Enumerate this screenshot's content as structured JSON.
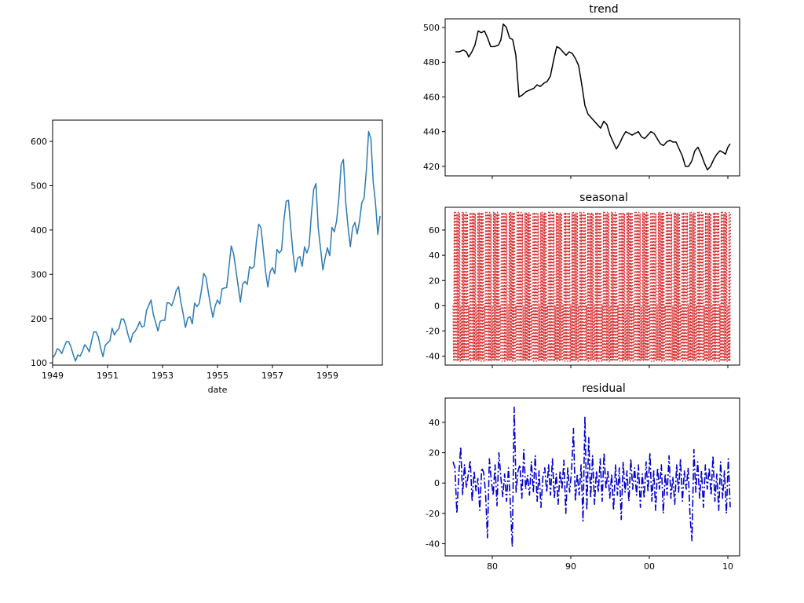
{
  "chart_data": [
    {
      "id": "passengers",
      "type": "line",
      "title": "",
      "xlabel": "date",
      "ylabel": "",
      "xlim": [
        1949,
        1961
      ],
      "ylim": [
        95,
        648
      ],
      "xticks": [
        1949,
        1951,
        1953,
        1955,
        1957,
        1959
      ],
      "yticks": [
        100,
        200,
        300,
        400,
        500,
        600
      ],
      "color": "#2b7bb4",
      "grid": false,
      "series": [
        {
          "x_start": 1949,
          "x_step_months": 1,
          "values": [
            112,
            118,
            132,
            129,
            121,
            135,
            148,
            148,
            136,
            119,
            104,
            118,
            115,
            126,
            141,
            135,
            125,
            149,
            170,
            170,
            158,
            133,
            114,
            140,
            145,
            150,
            178,
            163,
            172,
            178,
            199,
            199,
            184,
            162,
            146,
            166,
            171,
            180,
            193,
            181,
            183,
            218,
            230,
            242,
            209,
            191,
            172,
            194,
            196,
            196,
            236,
            235,
            229,
            243,
            264,
            272,
            237,
            211,
            180,
            201,
            204,
            188,
            235,
            227,
            234,
            264,
            302,
            293,
            259,
            229,
            203,
            229,
            242,
            233,
            267,
            269,
            270,
            315,
            364,
            347,
            312,
            274,
            237,
            278,
            284,
            277,
            317,
            313,
            318,
            374,
            413,
            405,
            355,
            306,
            271,
            306,
            315,
            301,
            356,
            348,
            355,
            422,
            465,
            467,
            404,
            347,
            305,
            336,
            340,
            318,
            362,
            348,
            363,
            435,
            491,
            505,
            404,
            359,
            310,
            337,
            360,
            342,
            406,
            396,
            420,
            472,
            548,
            559,
            463,
            407,
            362,
            405,
            417,
            391,
            419,
            461,
            472,
            535,
            622,
            606,
            508,
            461,
            390,
            432
          ]
        }
      ]
    },
    {
      "id": "trend",
      "type": "line",
      "title": "trend",
      "xlabel": "",
      "ylabel": "",
      "xlim": [
        1974,
        2011.5
      ],
      "ylim": [
        414.5,
        505
      ],
      "yticks": [
        420,
        440,
        460,
        480,
        500
      ],
      "xticks": [
        1980,
        1990,
        2000,
        2010
      ],
      "color": "#000000",
      "grid": false,
      "series": [
        {
          "points": [
            [
              1975.3,
              486
            ],
            [
              1975.8,
              486
            ],
            [
              1976.3,
              487
            ],
            [
              1976.7,
              486
            ],
            [
              1977.0,
              483
            ],
            [
              1977.4,
              486
            ],
            [
              1977.8,
              490
            ],
            [
              1978.2,
              498
            ],
            [
              1978.6,
              497
            ],
            [
              1979.0,
              498
            ],
            [
              1979.4,
              494
            ],
            [
              1979.8,
              489
            ],
            [
              1980.3,
              489
            ],
            [
              1980.8,
              490
            ],
            [
              1981.1,
              493
            ],
            [
              1981.4,
              502
            ],
            [
              1981.8,
              500
            ],
            [
              1982.2,
              494
            ],
            [
              1982.6,
              493
            ],
            [
              1983.0,
              484
            ],
            [
              1983.4,
              460
            ],
            [
              1983.8,
              461
            ],
            [
              1984.3,
              463
            ],
            [
              1984.8,
              464
            ],
            [
              1985.3,
              465
            ],
            [
              1985.7,
              467
            ],
            [
              1986.1,
              466
            ],
            [
              1986.6,
              468
            ],
            [
              1987.0,
              469
            ],
            [
              1987.4,
              472
            ],
            [
              1987.8,
              481
            ],
            [
              1988.2,
              489
            ],
            [
              1988.6,
              488
            ],
            [
              1989.0,
              486
            ],
            [
              1989.4,
              484
            ],
            [
              1989.8,
              486
            ],
            [
              1990.2,
              485
            ],
            [
              1990.6,
              482
            ],
            [
              1991.0,
              478
            ],
            [
              1991.4,
              467
            ],
            [
              1991.8,
              455
            ],
            [
              1992.2,
              450
            ],
            [
              1992.6,
              448
            ],
            [
              1993.0,
              446
            ],
            [
              1993.4,
              444
            ],
            [
              1993.8,
              442
            ],
            [
              1994.2,
              446
            ],
            [
              1994.6,
              444
            ],
            [
              1995.0,
              438
            ],
            [
              1995.4,
              434
            ],
            [
              1995.8,
              430
            ],
            [
              1996.2,
              433
            ],
            [
              1996.6,
              437
            ],
            [
              1997.0,
              440
            ],
            [
              1997.4,
              439
            ],
            [
              1997.8,
              438
            ],
            [
              1998.2,
              439
            ],
            [
              1998.6,
              440
            ],
            [
              1999.0,
              437
            ],
            [
              1999.4,
              436
            ],
            [
              1999.8,
              438
            ],
            [
              2000.2,
              440
            ],
            [
              2000.6,
              439
            ],
            [
              2001.0,
              436
            ],
            [
              2001.4,
              433
            ],
            [
              2001.8,
              432
            ],
            [
              2002.2,
              434
            ],
            [
              2002.6,
              435
            ],
            [
              2003.0,
              434
            ],
            [
              2003.4,
              434
            ],
            [
              2003.8,
              430
            ],
            [
              2004.2,
              426
            ],
            [
              2004.6,
              420
            ],
            [
              2005.0,
              420
            ],
            [
              2005.4,
              423
            ],
            [
              2005.8,
              429
            ],
            [
              2006.2,
              431
            ],
            [
              2006.6,
              427
            ],
            [
              2007.0,
              422
            ],
            [
              2007.4,
              418
            ],
            [
              2007.8,
              420
            ],
            [
              2008.2,
              424
            ],
            [
              2008.6,
              427
            ],
            [
              2009.0,
              429
            ],
            [
              2009.4,
              428
            ],
            [
              2009.7,
              427
            ],
            [
              2010.0,
              431
            ],
            [
              2010.3,
              433
            ]
          ]
        }
      ]
    },
    {
      "id": "seasonal",
      "type": "line",
      "title": "seasonal",
      "xlabel": "",
      "ylabel": "",
      "xlim": [
        1974,
        2011.5
      ],
      "ylim": [
        -47,
        78
      ],
      "yticks": [
        -40,
        -20,
        0,
        20,
        40,
        60
      ],
      "xticks": [
        1980,
        1990,
        2000,
        2010
      ],
      "color": "#d62728",
      "linestyle": "dotted",
      "grid": false,
      "series": [
        {
          "x_start": 1975.0,
          "x_end": 2010.3,
          "period_years": 1,
          "cycle": [
            0,
            -43,
            74,
            -44,
            74,
            -43,
            73,
            -44,
            74,
            -43,
            73,
            -44
          ]
        }
      ]
    },
    {
      "id": "residual",
      "type": "line",
      "title": "residual",
      "xlabel": "",
      "ylabel": "",
      "xlim": [
        1974,
        2011.5
      ],
      "ylim": [
        -48,
        56
      ],
      "yticks": [
        -40,
        -20,
        0,
        20,
        40
      ],
      "xticks": [
        1980,
        1990,
        2000,
        2010
      ],
      "xtick_labels": [
        "80",
        "90",
        "00",
        "10"
      ],
      "color": "#0000cc",
      "linestyle": "dashdot",
      "grid": false,
      "series": [
        {
          "x_start": 1975.0,
          "x_end": 2010.3,
          "values": [
            14,
            10,
            -20,
            5,
            24,
            -8,
            12,
            -3,
            6,
            15,
            -12,
            8,
            -5,
            3,
            -18,
            10,
            7,
            -6,
            -36,
            16,
            2,
            -8,
            12,
            -15,
            20,
            4,
            -9,
            6,
            -12,
            10,
            -14,
            -42,
            50,
            -6,
            8,
            12,
            -10,
            22,
            -4,
            5,
            -8,
            14,
            -6,
            18,
            -12,
            8,
            -16,
            4,
            10,
            -6,
            12,
            -8,
            16,
            -10,
            6,
            -14,
            8,
            -4,
            15,
            -20,
            10,
            -6,
            8,
            36,
            -12,
            6,
            -8,
            12,
            -25,
            44,
            -18,
            30,
            -10,
            18,
            -14,
            8,
            -6,
            16,
            -12,
            20,
            -4,
            8,
            -10,
            6,
            -18,
            12,
            -8,
            10,
            -24,
            14,
            -6,
            8,
            -12,
            16,
            -4,
            10,
            -8,
            12,
            -16,
            6,
            -10,
            14,
            -6,
            20,
            -12,
            8,
            -18,
            10,
            -4,
            12,
            -20,
            6,
            -8,
            18,
            -10,
            4,
            -14,
            12,
            -6,
            16,
            -12,
            8,
            -4,
            10,
            -22,
            -38,
            22,
            -6,
            14,
            -10,
            8,
            -16,
            12,
            -4,
            10,
            -8,
            18,
            -12,
            6,
            -18,
            14,
            -10,
            8,
            -20,
            16,
            -16
          ]
        }
      ]
    }
  ]
}
